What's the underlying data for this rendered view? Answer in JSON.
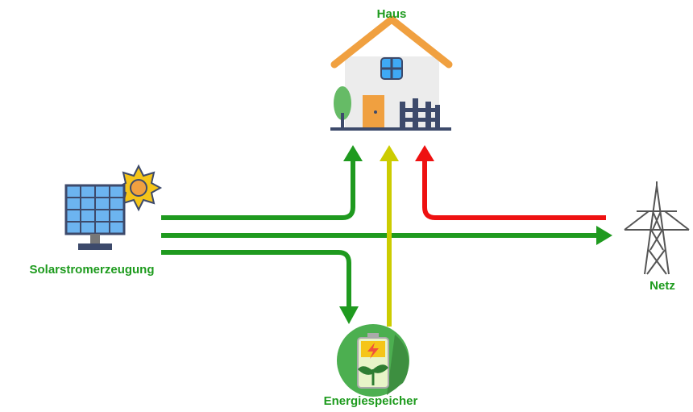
{
  "nodes": [
    {
      "id": "haus",
      "label": "Haus"
    },
    {
      "id": "solar",
      "label": "Solarstromerzeugung"
    },
    {
      "id": "netz",
      "label": "Netz"
    },
    {
      "id": "speicher",
      "label": "Energiespeicher"
    }
  ]
}
